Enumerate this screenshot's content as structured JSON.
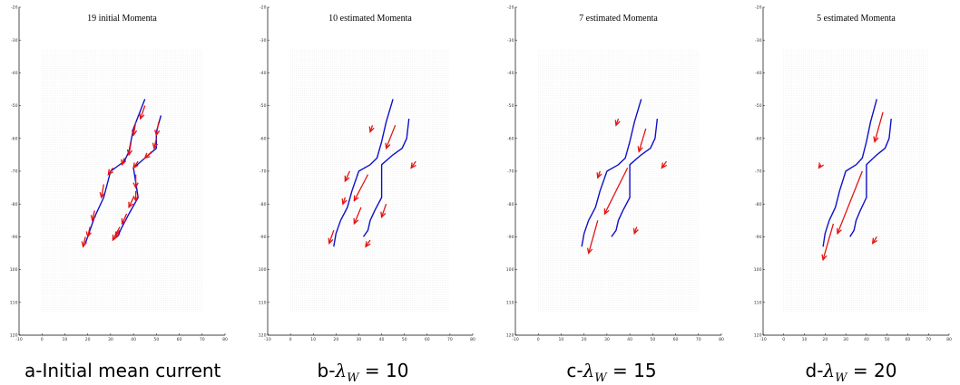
{
  "colors": {
    "curve": "#1010c8",
    "arrow": "#e41414",
    "grid": "#c8c8c8",
    "axis": "#000000"
  },
  "captions": [
    {
      "text": "a-Initial mean current"
    },
    {
      "prefix": "b-",
      "symbol": "λ",
      "sub": "W",
      "rest": " = 10"
    },
    {
      "prefix": "c-",
      "symbol": "λ",
      "sub": "W",
      "rest": " = 15"
    },
    {
      "prefix": "d-",
      "symbol": "λ",
      "sub": "W",
      "rest": " = 20"
    }
  ],
  "chart_data": [
    {
      "type": "line",
      "title": "19 initial Momenta",
      "xlim": [
        -10,
        80
      ],
      "ylim": [
        -120,
        -20
      ],
      "xticks": [
        -10,
        0,
        10,
        20,
        30,
        40,
        50,
        60,
        70,
        80
      ],
      "yticks": [
        -20,
        -30,
        -40,
        -50,
        -60,
        -70,
        -80,
        -90,
        -100,
        -110,
        -120
      ],
      "ytick_labels": [
        "-20",
        "-30",
        "-40",
        "-50",
        "-60",
        "-70",
        "-80",
        "-90",
        "100",
        "110",
        "120"
      ],
      "grid_region": {
        "x": [
          0,
          70
        ],
        "y": [
          -33,
          -113
        ]
      },
      "curves": [
        {
          "points": [
            [
              45,
              -48
            ],
            [
              40,
              -57
            ],
            [
              38,
              -64
            ],
            [
              36,
              -67
            ],
            [
              30,
              -70
            ],
            [
              27,
              -78
            ],
            [
              23,
              -84
            ],
            [
              19,
              -92
            ]
          ]
        },
        {
          "points": [
            [
              52,
              -53
            ],
            [
              50,
              -58
            ],
            [
              50,
              -63
            ],
            [
              45,
              -66
            ],
            [
              40,
              -69
            ],
            [
              42,
              -78
            ],
            [
              38,
              -83
            ],
            [
              35,
              -87
            ],
            [
              33,
              -90
            ]
          ]
        }
      ],
      "arrows": [
        {
          "tail": [
            45,
            -50
          ],
          "head": [
            43,
            -54
          ]
        },
        {
          "tail": [
            41,
            -55
          ],
          "head": [
            40,
            -59
          ]
        },
        {
          "tail": [
            39,
            -61
          ],
          "head": [
            38,
            -65
          ]
        },
        {
          "tail": [
            36,
            -66
          ],
          "head": [
            35,
            -68
          ]
        },
        {
          "tail": [
            31,
            -69
          ],
          "head": [
            29,
            -71
          ]
        },
        {
          "tail": [
            27,
            -74
          ],
          "head": [
            26,
            -78
          ]
        },
        {
          "tail": [
            23,
            -82
          ],
          "head": [
            22,
            -85
          ]
        },
        {
          "tail": [
            21,
            -87
          ],
          "head": [
            20,
            -90
          ]
        },
        {
          "tail": [
            19,
            -90
          ],
          "head": [
            18,
            -93
          ]
        },
        {
          "tail": [
            51,
            -55
          ],
          "head": [
            50,
            -59
          ]
        },
        {
          "tail": [
            50,
            -60
          ],
          "head": [
            49,
            -63
          ]
        },
        {
          "tail": [
            48,
            -64
          ],
          "head": [
            45,
            -66
          ]
        },
        {
          "tail": [
            42,
            -67
          ],
          "head": [
            40,
            -69
          ]
        },
        {
          "tail": [
            41,
            -71
          ],
          "head": [
            41,
            -75
          ]
        },
        {
          "tail": [
            41,
            -76
          ],
          "head": [
            41,
            -79
          ]
        },
        {
          "tail": [
            40,
            -78
          ],
          "head": [
            38,
            -81
          ]
        },
        {
          "tail": [
            37,
            -83
          ],
          "head": [
            35,
            -86
          ]
        },
        {
          "tail": [
            34,
            -88
          ],
          "head": [
            32,
            -90
          ]
        },
        {
          "tail": [
            34,
            -87
          ],
          "head": [
            31,
            -91
          ]
        }
      ]
    },
    {
      "type": "line",
      "title": "10 estimated Momenta",
      "xlim": [
        -10,
        80
      ],
      "ylim": [
        -120,
        -20
      ],
      "xticks": [
        -10,
        0,
        10,
        20,
        30,
        40,
        50,
        60,
        70,
        80
      ],
      "yticks": [
        -20,
        -30,
        -40,
        -50,
        -60,
        -70,
        -80,
        -90,
        -100,
        -110,
        -120
      ],
      "ytick_labels": [
        "-20",
        "-30",
        "-40",
        "-50",
        "-60",
        "-70",
        "-80",
        "-90",
        "100",
        "110",
        "120"
      ],
      "grid_region": {
        "x": [
          0,
          70
        ],
        "y": [
          -33,
          -113
        ]
      },
      "curves": [
        {
          "points": [
            [
              45,
              -48
            ],
            [
              42,
              -55
            ],
            [
              40,
              -61
            ],
            [
              38,
              -66
            ],
            [
              35,
              -68
            ],
            [
              30,
              -70
            ],
            [
              27,
              -76
            ],
            [
              25,
              -81
            ],
            [
              22,
              -85
            ],
            [
              20,
              -89
            ],
            [
              19,
              -93
            ]
          ]
        },
        {
          "points": [
            [
              52,
              -54
            ],
            [
              51,
              -60
            ],
            [
              49,
              -63
            ],
            [
              45,
              -65
            ],
            [
              40,
              -68
            ],
            [
              40,
              -78
            ],
            [
              37,
              -82
            ],
            [
              35,
              -85
            ],
            [
              34,
              -88
            ],
            [
              32,
              -90
            ]
          ]
        }
      ],
      "arrows": [
        {
          "tail": [
            36,
            -56
          ],
          "head": [
            35,
            -58
          ]
        },
        {
          "tail": [
            46,
            -56
          ],
          "head": [
            42,
            -63
          ]
        },
        {
          "tail": [
            26,
            -70
          ],
          "head": [
            24,
            -73
          ]
        },
        {
          "tail": [
            34,
            -71
          ],
          "head": [
            28,
            -79
          ]
        },
        {
          "tail": [
            55,
            -67
          ],
          "head": [
            53,
            -69
          ]
        },
        {
          "tail": [
            24,
            -78
          ],
          "head": [
            23,
            -80
          ]
        },
        {
          "tail": [
            31,
            -81
          ],
          "head": [
            28,
            -86
          ]
        },
        {
          "tail": [
            42,
            -80
          ],
          "head": [
            40,
            -84
          ]
        },
        {
          "tail": [
            19,
            -88
          ],
          "head": [
            17,
            -92
          ]
        },
        {
          "tail": [
            35,
            -91
          ],
          "head": [
            33,
            -93
          ]
        }
      ]
    },
    {
      "type": "line",
      "title": "7 estimated Momenta",
      "xlim": [
        -10,
        80
      ],
      "ylim": [
        -120,
        -20
      ],
      "xticks": [
        -10,
        0,
        10,
        20,
        30,
        40,
        50,
        60,
        70,
        80
      ],
      "yticks": [
        -20,
        -30,
        -40,
        -50,
        -60,
        -70,
        -80,
        -90,
        -100,
        -110,
        -120
      ],
      "ytick_labels": [
        "-20",
        "-30",
        "-40",
        "-50",
        "-60",
        "-70",
        "-80",
        "-90",
        "100",
        "110",
        "120"
      ],
      "grid_region": {
        "x": [
          0,
          70
        ],
        "y": [
          -33,
          -113
        ]
      },
      "curves": [
        {
          "points": [
            [
              45,
              -48
            ],
            [
              42,
              -55
            ],
            [
              40,
              -61
            ],
            [
              38,
              -66
            ],
            [
              35,
              -68
            ],
            [
              30,
              -70
            ],
            [
              27,
              -76
            ],
            [
              25,
              -81
            ],
            [
              22,
              -85
            ],
            [
              20,
              -89
            ],
            [
              19,
              -93
            ]
          ]
        },
        {
          "points": [
            [
              52,
              -54
            ],
            [
              51,
              -60
            ],
            [
              49,
              -63
            ],
            [
              45,
              -65
            ],
            [
              40,
              -68
            ],
            [
              40,
              -78
            ],
            [
              37,
              -82
            ],
            [
              35,
              -85
            ],
            [
              34,
              -88
            ],
            [
              32,
              -90
            ]
          ]
        }
      ],
      "arrows": [
        {
          "tail": [
            35,
            -54
          ],
          "head": [
            34,
            -56
          ]
        },
        {
          "tail": [
            47,
            -57
          ],
          "head": [
            44,
            -64
          ]
        },
        {
          "tail": [
            56,
            -67
          ],
          "head": [
            54,
            -69
          ]
        },
        {
          "tail": [
            27,
            -70
          ],
          "head": [
            26,
            -72
          ]
        },
        {
          "tail": [
            39,
            -69
          ],
          "head": [
            29,
            -83
          ]
        },
        {
          "tail": [
            26,
            -85
          ],
          "head": [
            22,
            -95
          ]
        },
        {
          "tail": [
            43,
            -87
          ],
          "head": [
            42,
            -89
          ]
        }
      ]
    },
    {
      "type": "line",
      "title": "5 estimated Momenta",
      "xlim": [
        -10,
        80
      ],
      "ylim": [
        -120,
        -20
      ],
      "xticks": [
        -10,
        0,
        10,
        20,
        30,
        40,
        50,
        60,
        70,
        80
      ],
      "yticks": [
        -20,
        -30,
        -40,
        -50,
        -60,
        -70,
        -80,
        -90,
        -100,
        -110,
        -120
      ],
      "ytick_labels": [
        "-20",
        "-30",
        "-40",
        "-50",
        "-60",
        "-70",
        "-80",
        "-90",
        "100",
        "110",
        "120"
      ],
      "grid_region": {
        "x": [
          0,
          70
        ],
        "y": [
          -33,
          -113
        ]
      },
      "curves": [
        {
          "points": [
            [
              45,
              -48
            ],
            [
              42,
              -55
            ],
            [
              40,
              -61
            ],
            [
              38,
              -66
            ],
            [
              35,
              -68
            ],
            [
              30,
              -70
            ],
            [
              27,
              -76
            ],
            [
              25,
              -81
            ],
            [
              22,
              -85
            ],
            [
              20,
              -89
            ],
            [
              19,
              -93
            ]
          ]
        },
        {
          "points": [
            [
              52,
              -54
            ],
            [
              51,
              -60
            ],
            [
              49,
              -63
            ],
            [
              45,
              -65
            ],
            [
              40,
              -68
            ],
            [
              40,
              -78
            ],
            [
              37,
              -82
            ],
            [
              35,
              -85
            ],
            [
              34,
              -88
            ],
            [
              32,
              -90
            ]
          ]
        }
      ],
      "arrows": [
        {
          "tail": [
            48,
            -52
          ],
          "head": [
            44,
            -61
          ]
        },
        {
          "tail": [
            18,
            -68
          ],
          "head": [
            17,
            -69
          ]
        },
        {
          "tail": [
            38,
            -70
          ],
          "head": [
            26,
            -89
          ]
        },
        {
          "tail": [
            24,
            -86
          ],
          "head": [
            19,
            -97
          ]
        },
        {
          "tail": [
            45,
            -90
          ],
          "head": [
            43,
            -92
          ]
        }
      ]
    }
  ]
}
